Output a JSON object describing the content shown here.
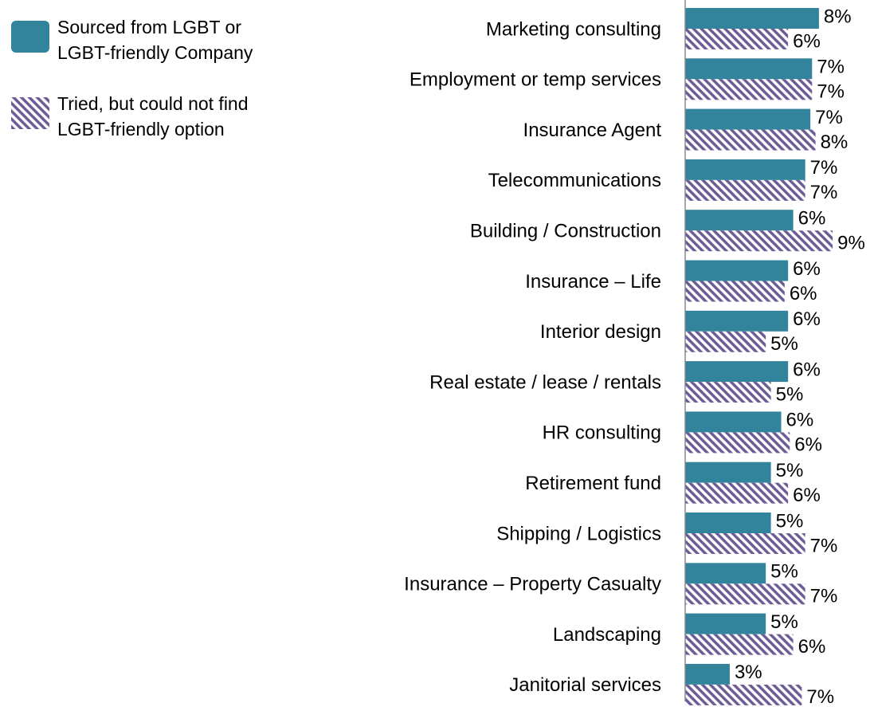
{
  "chart_data": {
    "type": "bar",
    "orientation": "horizontal",
    "categories": [
      "Marketing consulting",
      "Employment or temp services",
      "Insurance Agent",
      "Telecommunications",
      "Building / Construction",
      "Insurance – Life",
      "Interior design",
      "Real estate / lease / rentals",
      "HR consulting",
      "Retirement fund",
      "Shipping / Logistics",
      "Insurance – Property Casualty",
      "Landscaping",
      "Janitorial services"
    ],
    "series": [
      {
        "name": "Sourced from LGBT or LGBT-friendly Company",
        "color": "#31849b",
        "pattern": "solid",
        "values": [
          7.8,
          7.4,
          7.3,
          7.0,
          6.3,
          6.0,
          6.0,
          6.0,
          5.6,
          5.0,
          5.0,
          4.7,
          4.7,
          2.6
        ],
        "value_labels": [
          "8%",
          "7%",
          "7%",
          "7%",
          "6%",
          "6%",
          "6%",
          "6%",
          "6%",
          "5%",
          "5%",
          "5%",
          "5%",
          "3%"
        ]
      },
      {
        "name": "Tried, but could not find LGBT-friendly option",
        "color": "#6b5b95",
        "pattern": "hatch",
        "values": [
          6.0,
          7.4,
          7.6,
          7.0,
          8.6,
          5.8,
          4.7,
          5.0,
          6.1,
          6.0,
          7.0,
          7.0,
          6.3,
          6.8
        ],
        "value_labels": [
          "6%",
          "7%",
          "8%",
          "7%",
          "9%",
          "6%",
          "5%",
          "5%",
          "6%",
          "6%",
          "7%",
          "7%",
          "6%",
          "7%"
        ]
      }
    ],
    "xlim": [
      0,
      10.5
    ],
    "legend": "top-left"
  }
}
